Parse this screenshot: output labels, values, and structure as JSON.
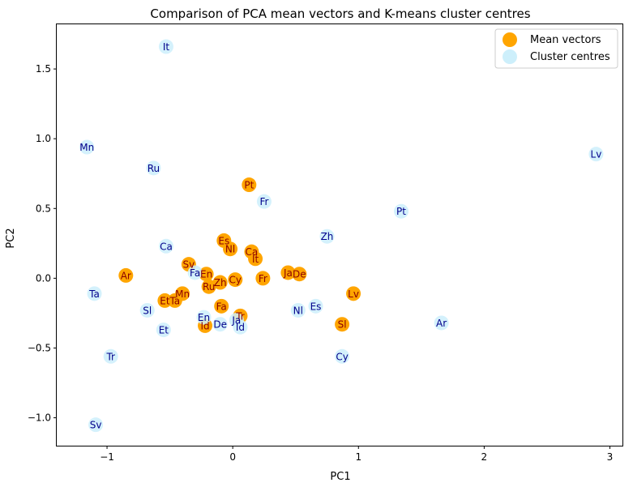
{
  "chart_data": {
    "type": "scatter",
    "title": "Comparison of PCA mean vectors and K-means cluster centres",
    "xlabel": "PC1",
    "ylabel": "PC2",
    "xlim": [
      -1.4,
      3.1
    ],
    "ylim": [
      -1.2,
      1.82
    ],
    "xticks": [
      -1,
      0,
      1,
      2,
      3
    ],
    "xtick_labels": [
      "−1",
      "0",
      "1",
      "2",
      "3"
    ],
    "yticks": [
      -1.0,
      -0.5,
      0.0,
      0.5,
      1.0,
      1.5
    ],
    "ytick_labels": [
      "−1.0",
      "−0.5",
      "0.0",
      "0.5",
      "1.0",
      "1.5"
    ],
    "grid": false,
    "legend_position": "upper-right",
    "series": [
      {
        "name": "Mean vectors",
        "color": "#ffa500",
        "label_color": "#8b0000",
        "points": [
          {
            "label": "Pt",
            "x": 0.13,
            "y": 0.67
          },
          {
            "label": "Es",
            "x": -0.07,
            "y": 0.27
          },
          {
            "label": "Nl",
            "x": -0.02,
            "y": 0.21
          },
          {
            "label": "Ca",
            "x": 0.15,
            "y": 0.19
          },
          {
            "label": "It",
            "x": 0.18,
            "y": 0.14
          },
          {
            "label": "Sv",
            "x": -0.35,
            "y": 0.1
          },
          {
            "label": "En",
            "x": -0.21,
            "y": 0.03
          },
          {
            "label": "Ar",
            "x": -0.85,
            "y": 0.02
          },
          {
            "label": "Ja",
            "x": 0.44,
            "y": 0.04
          },
          {
            "label": "De",
            "x": 0.53,
            "y": 0.03
          },
          {
            "label": "Fr",
            "x": 0.24,
            "y": 0.0
          },
          {
            "label": "Cy",
            "x": 0.02,
            "y": -0.01
          },
          {
            "label": "Zh",
            "x": -0.1,
            "y": -0.03
          },
          {
            "label": "Ru",
            "x": -0.19,
            "y": -0.06
          },
          {
            "label": "Mn",
            "x": -0.4,
            "y": -0.11
          },
          {
            "label": "Lv",
            "x": 0.96,
            "y": -0.11
          },
          {
            "label": "Et",
            "x": -0.54,
            "y": -0.16
          },
          {
            "label": "Ta",
            "x": -0.46,
            "y": -0.16
          },
          {
            "label": "Fa",
            "x": -0.09,
            "y": -0.2
          },
          {
            "label": "Tr",
            "x": 0.06,
            "y": -0.27
          },
          {
            "label": "Sl",
            "x": 0.87,
            "y": -0.33
          },
          {
            "label": "Id",
            "x": -0.22,
            "y": -0.34
          }
        ]
      },
      {
        "name": "Cluster centres",
        "color": "#cdeffb",
        "label_color": "#00008b",
        "points": [
          {
            "label": "It",
            "x": -0.53,
            "y": 1.66
          },
          {
            "label": "Mn",
            "x": -1.16,
            "y": 0.94
          },
          {
            "label": "Lv",
            "x": 2.89,
            "y": 0.89
          },
          {
            "label": "Ru",
            "x": -0.63,
            "y": 0.79
          },
          {
            "label": "Fr",
            "x": 0.25,
            "y": 0.55
          },
          {
            "label": "Pt",
            "x": 1.34,
            "y": 0.48
          },
          {
            "label": "Zh",
            "x": 0.75,
            "y": 0.3
          },
          {
            "label": "Ca",
            "x": -0.53,
            "y": 0.23
          },
          {
            "label": "Fa",
            "x": -0.3,
            "y": 0.04
          },
          {
            "label": "Ta",
            "x": -1.1,
            "y": -0.11
          },
          {
            "label": "Es",
            "x": 0.66,
            "y": -0.2
          },
          {
            "label": "Sl",
            "x": -0.68,
            "y": -0.23
          },
          {
            "label": "Nl",
            "x": 0.52,
            "y": -0.23
          },
          {
            "label": "En",
            "x": -0.23,
            "y": -0.28
          },
          {
            "label": "Ja",
            "x": 0.03,
            "y": -0.3
          },
          {
            "label": "De",
            "x": -0.1,
            "y": -0.33
          },
          {
            "label": "Id",
            "x": 0.06,
            "y": -0.35
          },
          {
            "label": "Ar",
            "x": 1.66,
            "y": -0.32
          },
          {
            "label": "Et",
            "x": -0.55,
            "y": -0.37
          },
          {
            "label": "Tr",
            "x": -0.97,
            "y": -0.56
          },
          {
            "label": "Cy",
            "x": 0.87,
            "y": -0.56
          },
          {
            "label": "Sv",
            "x": -1.09,
            "y": -1.05
          }
        ]
      }
    ]
  }
}
